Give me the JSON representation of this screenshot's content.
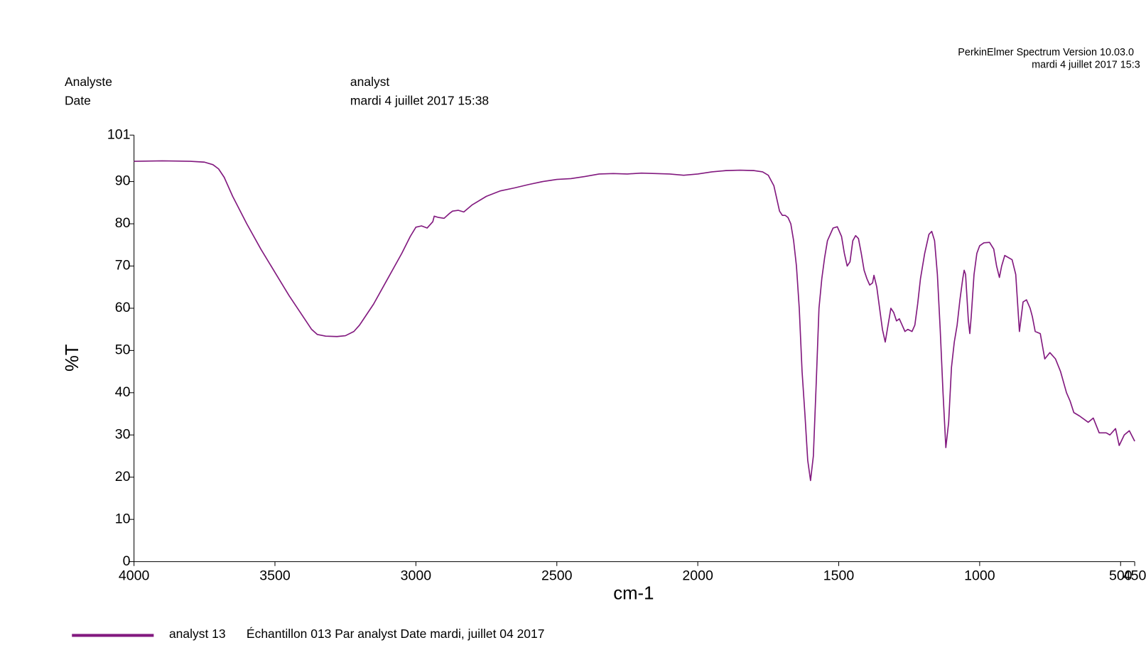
{
  "header": {
    "software": "PerkinElmer Spectrum Version 10.03.0",
    "timestamp": "mardi 4 juillet 2017 15:3",
    "fields": [
      {
        "label": "Analyste",
        "value": "analyst"
      },
      {
        "label": "Date",
        "value": "mardi 4 juillet 2017 15:38"
      }
    ]
  },
  "chart_data": {
    "type": "line",
    "xlabel": "cm-1",
    "ylabel": "%T",
    "xlim": [
      4000,
      450
    ],
    "ylim": [
      0,
      101
    ],
    "xticks": [
      4000,
      3500,
      3000,
      2500,
      2000,
      1500,
      1000,
      500,
      450
    ],
    "yticks": [
      0,
      10,
      20,
      30,
      40,
      50,
      60,
      70,
      80,
      90,
      101
    ],
    "legend": "bottom-left",
    "x": [
      4000,
      3900,
      3800,
      3750,
      3720,
      3700,
      3680,
      3650,
      3600,
      3550,
      3500,
      3450,
      3400,
      3370,
      3350,
      3320,
      3280,
      3250,
      3220,
      3200,
      3150,
      3100,
      3050,
      3020,
      3000,
      2980,
      2960,
      2940,
      2935,
      2920,
      2900,
      2880,
      2870,
      2850,
      2830,
      2800,
      2750,
      2700,
      2650,
      2600,
      2550,
      2500,
      2450,
      2400,
      2350,
      2300,
      2250,
      2200,
      2150,
      2100,
      2050,
      2000,
      1950,
      1900,
      1850,
      1800,
      1770,
      1750,
      1730,
      1720,
      1710,
      1700,
      1690,
      1680,
      1670,
      1660,
      1650,
      1640,
      1630,
      1620,
      1610,
      1600,
      1590,
      1580,
      1570,
      1560,
      1550,
      1540,
      1520,
      1505,
      1490,
      1480,
      1470,
      1460,
      1450,
      1440,
      1430,
      1420,
      1410,
      1400,
      1390,
      1380,
      1375,
      1365,
      1355,
      1345,
      1335,
      1325,
      1315,
      1305,
      1295,
      1285,
      1275,
      1265,
      1255,
      1240,
      1230,
      1220,
      1210,
      1195,
      1180,
      1170,
      1160,
      1150,
      1140,
      1130,
      1120,
      1110,
      1100,
      1090,
      1080,
      1070,
      1060,
      1055,
      1050,
      1040,
      1035,
      1030,
      1020,
      1010,
      1000,
      985,
      965,
      950,
      940,
      930,
      922,
      911,
      885,
      872,
      859,
      846,
      834,
      821,
      813,
      803,
      785,
      769,
      751,
      731,
      713,
      692,
      679,
      666,
      646,
      615,
      597,
      576,
      551,
      538,
      518,
      505,
      487,
      469,
      450
    ],
    "series": [
      {
        "name": "analyst 13",
        "description": "Échantillon 013 Par analyst Date mardi, juillet 04 2017",
        "color": "#82197f",
        "values": [
          94.8,
          94.9,
          94.8,
          94.6,
          94.0,
          93.0,
          91.0,
          86.5,
          80,
          74,
          68.5,
          63,
          58,
          55,
          53.8,
          53.4,
          53.3,
          53.5,
          54.5,
          56,
          61,
          67,
          73,
          77,
          79.2,
          79.5,
          79,
          80.5,
          81.8,
          81.5,
          81.3,
          82.5,
          83,
          83.2,
          82.8,
          84.5,
          86.5,
          87.8,
          88.5,
          89.3,
          90,
          90.5,
          90.7,
          91.2,
          91.8,
          91.9,
          91.8,
          92,
          91.9,
          91.8,
          91.5,
          91.8,
          92.3,
          92.6,
          92.7,
          92.6,
          92.3,
          91.5,
          89,
          86,
          83,
          82,
          82,
          81.5,
          80,
          76,
          70,
          60,
          45,
          35,
          24,
          19.2,
          25,
          42,
          60,
          67,
          72,
          76,
          79,
          79.3,
          77,
          73,
          70,
          71,
          76,
          77.2,
          76.5,
          73,
          69,
          67,
          65.5,
          66,
          67.8,
          65,
          60,
          55,
          52,
          56,
          60,
          59,
          57,
          57.5,
          56,
          54.5,
          55,
          54.5,
          56,
          61,
          67,
          73,
          77.5,
          78.2,
          76,
          68,
          55,
          40,
          27,
          33,
          46,
          52,
          56,
          62,
          67,
          69,
          68,
          57,
          54,
          58,
          68,
          73,
          74.8,
          75.5,
          75.6,
          74,
          70,
          67.3,
          70,
          72.5,
          71.5,
          68,
          54.5,
          61.5,
          62,
          60,
          58,
          54.5,
          54,
          48,
          49.5,
          48,
          45,
          40,
          38,
          35.3,
          34.5,
          33,
          34,
          30.5,
          30.5,
          30,
          31.5,
          27.5,
          30,
          31,
          28.5
        ]
      }
    ]
  }
}
